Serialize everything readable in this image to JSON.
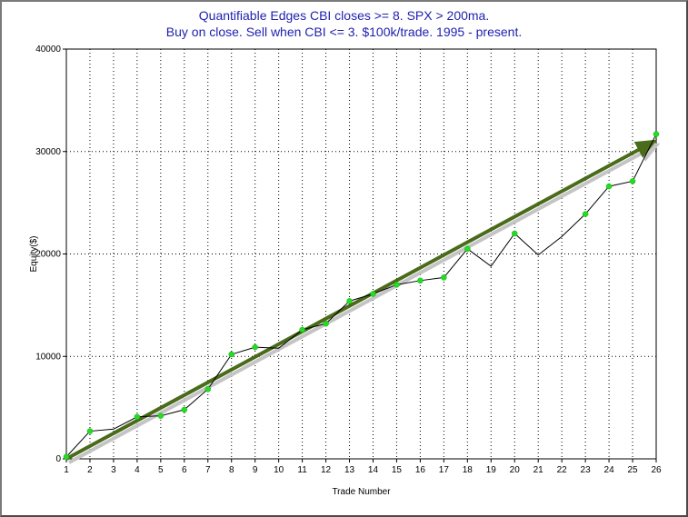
{
  "chart_data": {
    "type": "line",
    "title": "Quantifiable Edges CBI closes >= 8. SPX > 200ma.",
    "subtitle": "Buy on close. Sell when CBI <= 3. $100k/trade. 1995 - present.",
    "xlabel": "Trade Number",
    "ylabel": "Equity($)",
    "xlim": [
      1,
      26
    ],
    "ylim": [
      0,
      40000
    ],
    "x_ticks": [
      1,
      2,
      3,
      4,
      5,
      6,
      7,
      8,
      9,
      10,
      11,
      12,
      13,
      14,
      15,
      16,
      17,
      18,
      19,
      20,
      21,
      22,
      23,
      24,
      25,
      26
    ],
    "y_ticks": [
      0,
      10000,
      20000,
      30000,
      40000
    ],
    "grid": true,
    "series": [
      {
        "x": [
          1,
          2,
          3,
          4,
          5,
          6,
          7,
          8,
          9,
          10,
          11,
          12,
          13,
          14,
          15,
          16,
          17,
          18,
          19,
          20,
          21,
          22,
          23,
          24,
          25,
          26
        ],
        "values": [
          200,
          2700,
          2900,
          4100,
          4200,
          4800,
          6800,
          10200,
          10900,
          10800,
          12600,
          13200,
          15400,
          16100,
          17000,
          17400,
          17700,
          20500,
          18800,
          22000,
          19900,
          21700,
          23900,
          26600,
          27100,
          31700
        ],
        "line_color": "#000000",
        "marker_color": "#22dd22",
        "marker_visible": [
          true,
          true,
          false,
          true,
          true,
          true,
          true,
          true,
          true,
          false,
          true,
          true,
          true,
          true,
          true,
          true,
          true,
          true,
          false,
          true,
          false,
          false,
          true,
          true,
          true,
          true
        ]
      }
    ],
    "annotations": [
      {
        "type": "trend-arrow",
        "from": [
          1,
          0
        ],
        "to": [
          26,
          31000
        ],
        "color": "#4a6b1a"
      }
    ]
  }
}
